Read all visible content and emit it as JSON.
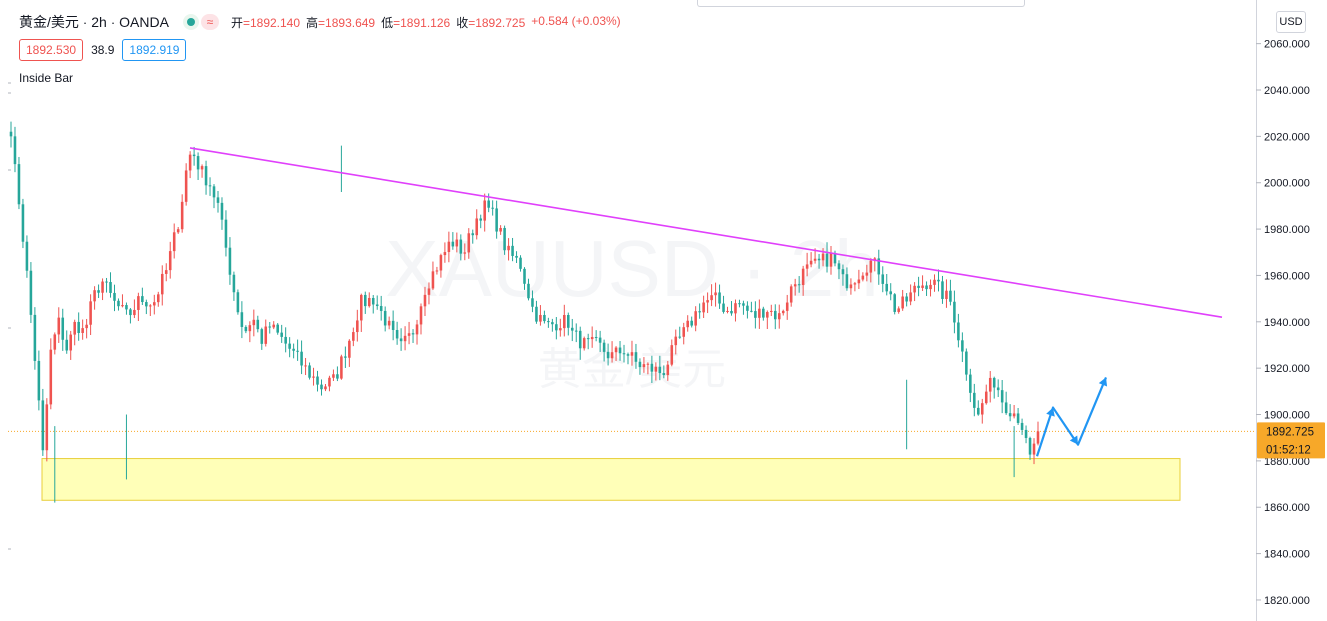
{
  "header": {
    "symbol": "黄金/美元",
    "timeframe": "2h",
    "broker": "OANDA",
    "status_glyph": "≈",
    "ohlc": {
      "open_label": "开",
      "open": "=1892.140",
      "high_label": "高",
      "high": "=1893.649",
      "low_label": "低",
      "low": "=1891.126",
      "close_label": "收",
      "close": "=1892.725",
      "change": "+0.584 (+0.03%)"
    }
  },
  "quote": {
    "bid": "1892.530",
    "spread": "38.9",
    "ask": "1892.919"
  },
  "indicator": "Inside Bar",
  "watermark": {
    "line1": "XAUUSD · 2h",
    "line2": "黄金/美元"
  },
  "price_axis": {
    "currency_button": "USD",
    "current_price": "1892.725",
    "countdown": "01:52:12",
    "tick_labels": [
      "2060.000",
      "2040.000",
      "2020.000",
      "2000.000",
      "1980.000",
      "1960.000",
      "1940.000",
      "1920.000",
      "1900.000",
      "1880.000",
      "1860.000",
      "1840.000",
      "1820.000"
    ]
  },
  "colors": {
    "up": "#ef5350",
    "down": "#26a69a",
    "trendline": "#e040fb",
    "zone_fill": "#ffffb8",
    "zone_border": "#e8cf3a",
    "projection": "#2196f3",
    "price_tag": "#f7a829"
  },
  "chart_data": {
    "type": "candlestick",
    "symbol": "XAUUSD",
    "interval": "2h",
    "ylim": [
      1812,
      2070
    ],
    "y_ticks": [
      2060,
      2040,
      2020,
      2000,
      1980,
      1960,
      1940,
      1920,
      1900,
      1880,
      1860,
      1840,
      1820
    ],
    "candle_count": 259,
    "close_path": [
      [
        0,
        2018
      ],
      [
        4,
        1990
      ],
      [
        8,
        1955
      ],
      [
        12,
        1915
      ],
      [
        15,
        1880
      ],
      [
        18,
        1925
      ],
      [
        22,
        1940
      ],
      [
        26,
        1928
      ],
      [
        30,
        1940
      ],
      [
        34,
        1935
      ],
      [
        38,
        1950
      ],
      [
        42,
        1958
      ],
      [
        48,
        1948
      ],
      [
        54,
        1942
      ],
      [
        60,
        1950
      ],
      [
        66,
        1948
      ],
      [
        72,
        1962
      ],
      [
        78,
        1985
      ],
      [
        82,
        2010
      ],
      [
        84,
        2014
      ],
      [
        88,
        2005
      ],
      [
        92,
        2000
      ],
      [
        96,
        1990
      ],
      [
        100,
        1970
      ],
      [
        104,
        1950
      ],
      [
        108,
        1935
      ],
      [
        112,
        1942
      ],
      [
        116,
        1932
      ],
      [
        120,
        1938
      ],
      [
        126,
        1932
      ],
      [
        132,
        1925
      ],
      [
        138,
        1918
      ],
      [
        144,
        1912
      ],
      [
        150,
        1915
      ],
      [
        156,
        1930
      ],
      [
        162,
        1948
      ],
      [
        168,
        1950
      ],
      [
        174,
        1940
      ],
      [
        180,
        1928
      ],
      [
        186,
        1935
      ],
      [
        192,
        1955
      ],
      [
        198,
        1965
      ],
      [
        204,
        1975
      ],
      [
        210,
        1970
      ],
      [
        216,
        1985
      ],
      [
        220,
        1990
      ],
      [
        224,
        1985
      ],
      [
        230,
        1970
      ],
      [
        236,
        1965
      ],
      [
        242,
        1945
      ],
      [
        248,
        1938
      ],
      [
        254,
        1940
      ],
      [
        259,
        1940
      ]
    ],
    "close_path_tail": [
      [
        260,
        1935
      ],
      [
        266,
        1930
      ],
      [
        272,
        1930
      ],
      [
        278,
        1925
      ],
      [
        284,
        1928
      ],
      [
        290,
        1922
      ],
      [
        296,
        1920
      ],
      [
        302,
        1918
      ],
      [
        308,
        1930
      ],
      [
        314,
        1938
      ],
      [
        320,
        1948
      ],
      [
        326,
        1950
      ],
      [
        332,
        1945
      ],
      [
        338,
        1948
      ],
      [
        344,
        1942
      ],
      [
        350,
        1946
      ],
      [
        356,
        1942
      ],
      [
        362,
        1955
      ],
      [
        368,
        1962
      ],
      [
        374,
        1965
      ],
      [
        380,
        1968
      ],
      [
        386,
        1957
      ],
      [
        392,
        1960
      ],
      [
        398,
        1966
      ],
      [
        402,
        1963
      ],
      [
        406,
        1955
      ],
      [
        410,
        1945
      ],
      [
        414,
        1948
      ],
      [
        420,
        1955
      ],
      [
        426,
        1958
      ],
      [
        432,
        1952
      ],
      [
        436,
        1948
      ],
      [
        440,
        1930
      ],
      [
        444,
        1915
      ],
      [
        448,
        1898
      ],
      [
        452,
        1910
      ],
      [
        456,
        1915
      ],
      [
        460,
        1905
      ],
      [
        464,
        1902
      ],
      [
        468,
        1898
      ],
      [
        472,
        1880
      ],
      [
        474,
        1885
      ],
      [
        476,
        1892.7
      ]
    ],
    "key_levels": {
      "swing_high": 2015,
      "second_high": 1993,
      "third_high": 1972,
      "swing_low": 1862,
      "recent_low": 1873
    },
    "annotations": {
      "trendline": {
        "from": 2015,
        "to": 1942
      },
      "demand_zone": {
        "top": 1881,
        "bottom": 1863
      },
      "current_price_line": 1892.725,
      "projection": [
        1882,
        1903,
        1887,
        1916
      ]
    }
  }
}
